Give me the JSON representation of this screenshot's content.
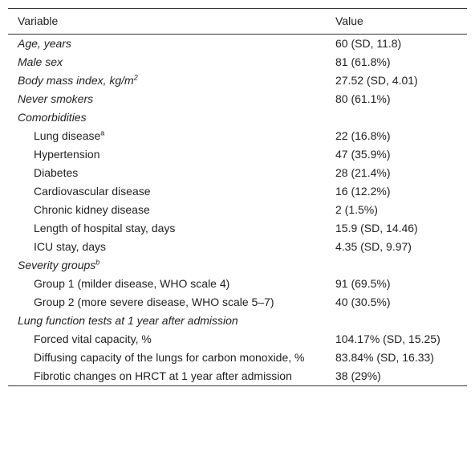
{
  "table": {
    "header": [
      "Variable",
      "Value"
    ],
    "groups": [
      {
        "label": "Age, years",
        "value": "60 (SD, 11.8)"
      },
      {
        "label": "Male sex",
        "value": "81 (61.8%)"
      },
      {
        "label": "Body mass index, kg/m",
        "sup": "2",
        "value": "27.52 (SD, 4.01)"
      },
      {
        "label": "Never smokers",
        "value": "80 (61.1%)"
      },
      {
        "label": "Comorbidities",
        "items": [
          {
            "label": "Lung disease",
            "sup": "a",
            "value": "22 (16.8%)"
          },
          {
            "label": "Hypertension",
            "value": "47 (35.9%)"
          },
          {
            "label": "Diabetes",
            "value": "28 (21.4%)"
          },
          {
            "label": "Cardiovascular disease",
            "value": "16 (12.2%)"
          },
          {
            "label": "Chronic kidney disease",
            "value": "2 (1.5%)"
          },
          {
            "label": "Length of hospital stay, days",
            "value": "15.9 (SD, 14.46)"
          },
          {
            "label": "ICU stay, days",
            "value": "4.35 (SD, 9.97)"
          }
        ]
      },
      {
        "label": "Severity groups",
        "sup": "b",
        "items": [
          {
            "label": "Group 1 (milder disease, WHO scale 4)",
            "value": "91 (69.5%)"
          },
          {
            "label": "Group 2 (more severe disease, WHO scale 5–7)",
            "value": "40 (30.5%)"
          }
        ]
      },
      {
        "label": "Lung function tests at 1 year after admission",
        "items": [
          {
            "label": "Forced vital capacity, %",
            "value": "104.17% (SD, 15.25)"
          },
          {
            "label": "Diffusing capacity of the lungs for carbon monoxide, %",
            "value": "83.84% (SD, 16.33)"
          },
          {
            "label": "Fibrotic changes on HRCT at 1 year after admission",
            "value": "38 (29%)"
          }
        ]
      }
    ]
  }
}
